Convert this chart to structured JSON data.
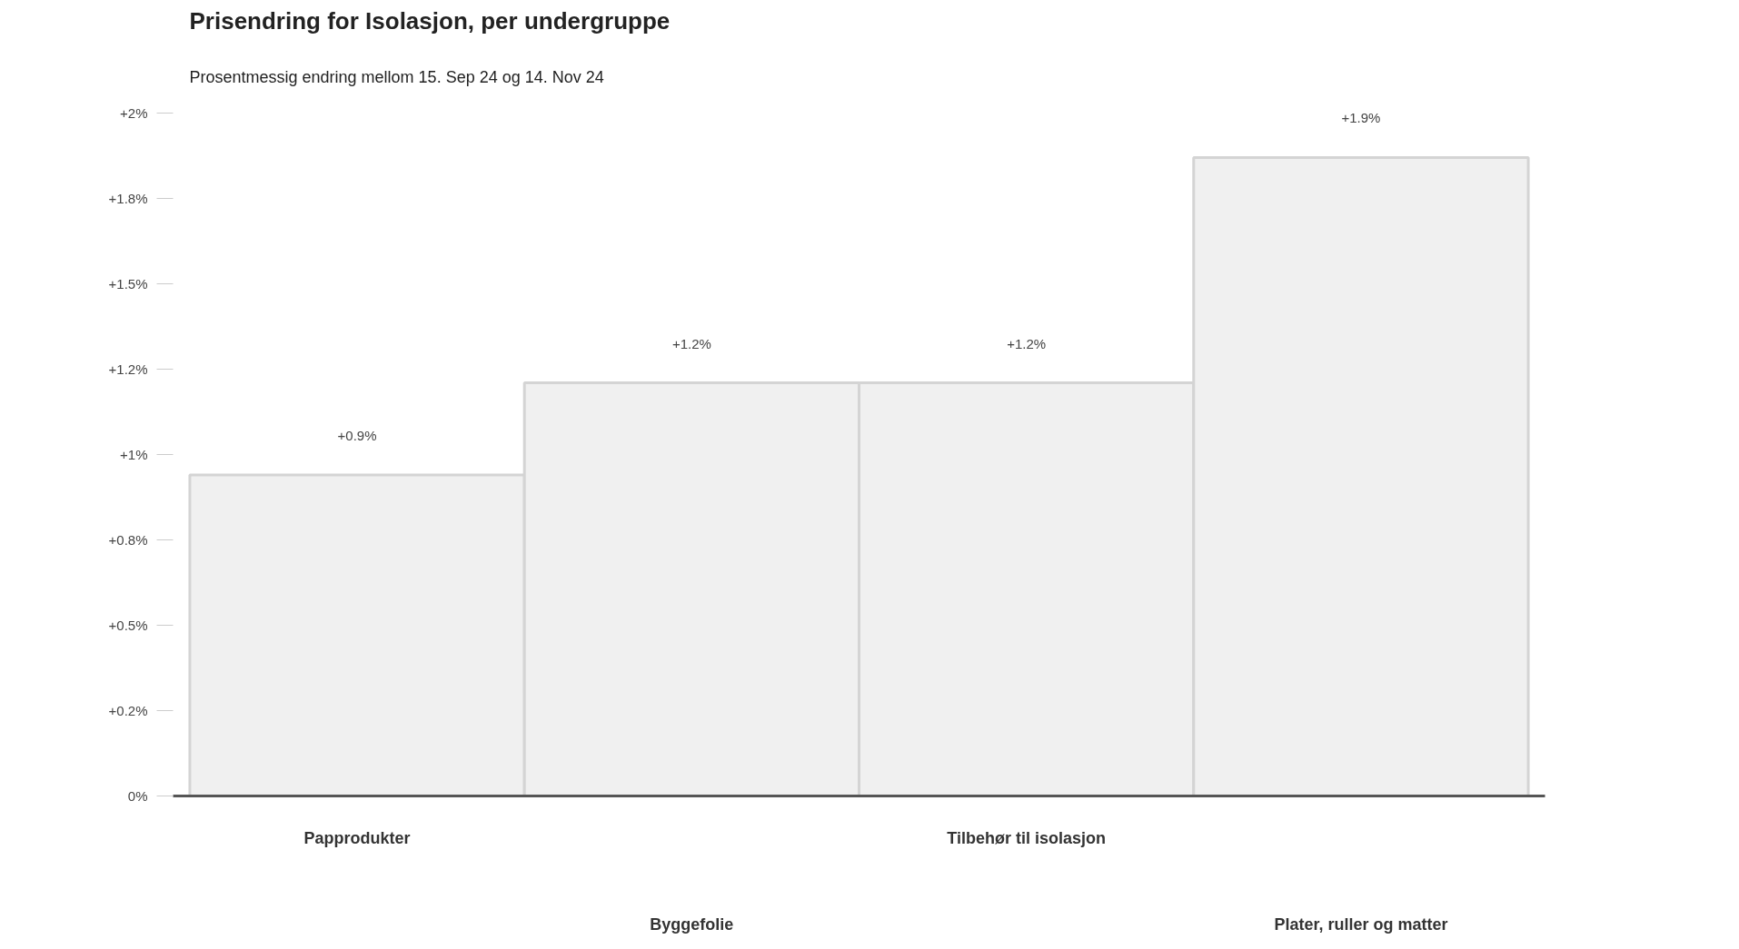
{
  "chart_data": {
    "type": "bar",
    "title": "Prisendring for Isolasjon, per undergruppe",
    "subtitle": "Prosentmessig endring mellom 15. Sep 24 og 14. Nov 24",
    "categories": [
      "Papprodukter",
      "Byggefolie",
      "Tilbehør til isolasjon",
      "Plater, ruller og matter"
    ],
    "values": [
      0.94,
      1.21,
      1.21,
      1.87
    ],
    "value_labels": [
      "+0.9%",
      "+1.2%",
      "+1.2%",
      "+1.9%"
    ],
    "color": "#f0f0f0",
    "ylim": [
      0,
      2
    ],
    "yticks": [
      {
        "value": 0,
        "label": "0%"
      },
      {
        "value": 0.25,
        "label": "+0.2%"
      },
      {
        "value": 0.5,
        "label": "+0.5%"
      },
      {
        "value": 0.75,
        "label": "+0.8%"
      },
      {
        "value": 1,
        "label": "+1%"
      },
      {
        "value": 1.25,
        "label": "+1.2%"
      },
      {
        "value": 1.5,
        "label": "+1.5%"
      },
      {
        "value": 1.75,
        "label": "+1.8%"
      },
      {
        "value": 2,
        "label": "+2%"
      }
    ]
  }
}
